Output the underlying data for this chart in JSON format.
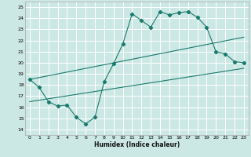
{
  "xlabel": "Humidex (Indice chaleur)",
  "bg_color": "#cce8e4",
  "grid_color": "#ffffff",
  "line_color": "#1a7a6e",
  "xlim": [
    -0.5,
    23.5
  ],
  "ylim": [
    13.5,
    25.5
  ],
  "yticks": [
    14,
    15,
    16,
    17,
    18,
    19,
    20,
    21,
    22,
    23,
    24,
    25
  ],
  "xticks": [
    0,
    1,
    2,
    3,
    4,
    5,
    6,
    7,
    8,
    9,
    10,
    11,
    12,
    13,
    14,
    15,
    16,
    17,
    18,
    19,
    20,
    21,
    22,
    23
  ],
  "series1_x": [
    0,
    1,
    2,
    3,
    4,
    5,
    6,
    7,
    8,
    9,
    10,
    11,
    12,
    13,
    14,
    15,
    16,
    17,
    18,
    19,
    20,
    21,
    22,
    23
  ],
  "series1_y": [
    18.5,
    17.8,
    16.5,
    16.1,
    16.2,
    15.1,
    14.5,
    15.1,
    18.3,
    19.9,
    21.7,
    24.4,
    23.8,
    23.2,
    24.6,
    24.3,
    24.5,
    24.6,
    24.1,
    23.2,
    21.0,
    20.8,
    20.1,
    20.0
  ],
  "series2_x": [
    0,
    23
  ],
  "series2_y": [
    18.5,
    22.3
  ],
  "series3_x": [
    0,
    23
  ],
  "series3_y": [
    16.5,
    19.5
  ]
}
